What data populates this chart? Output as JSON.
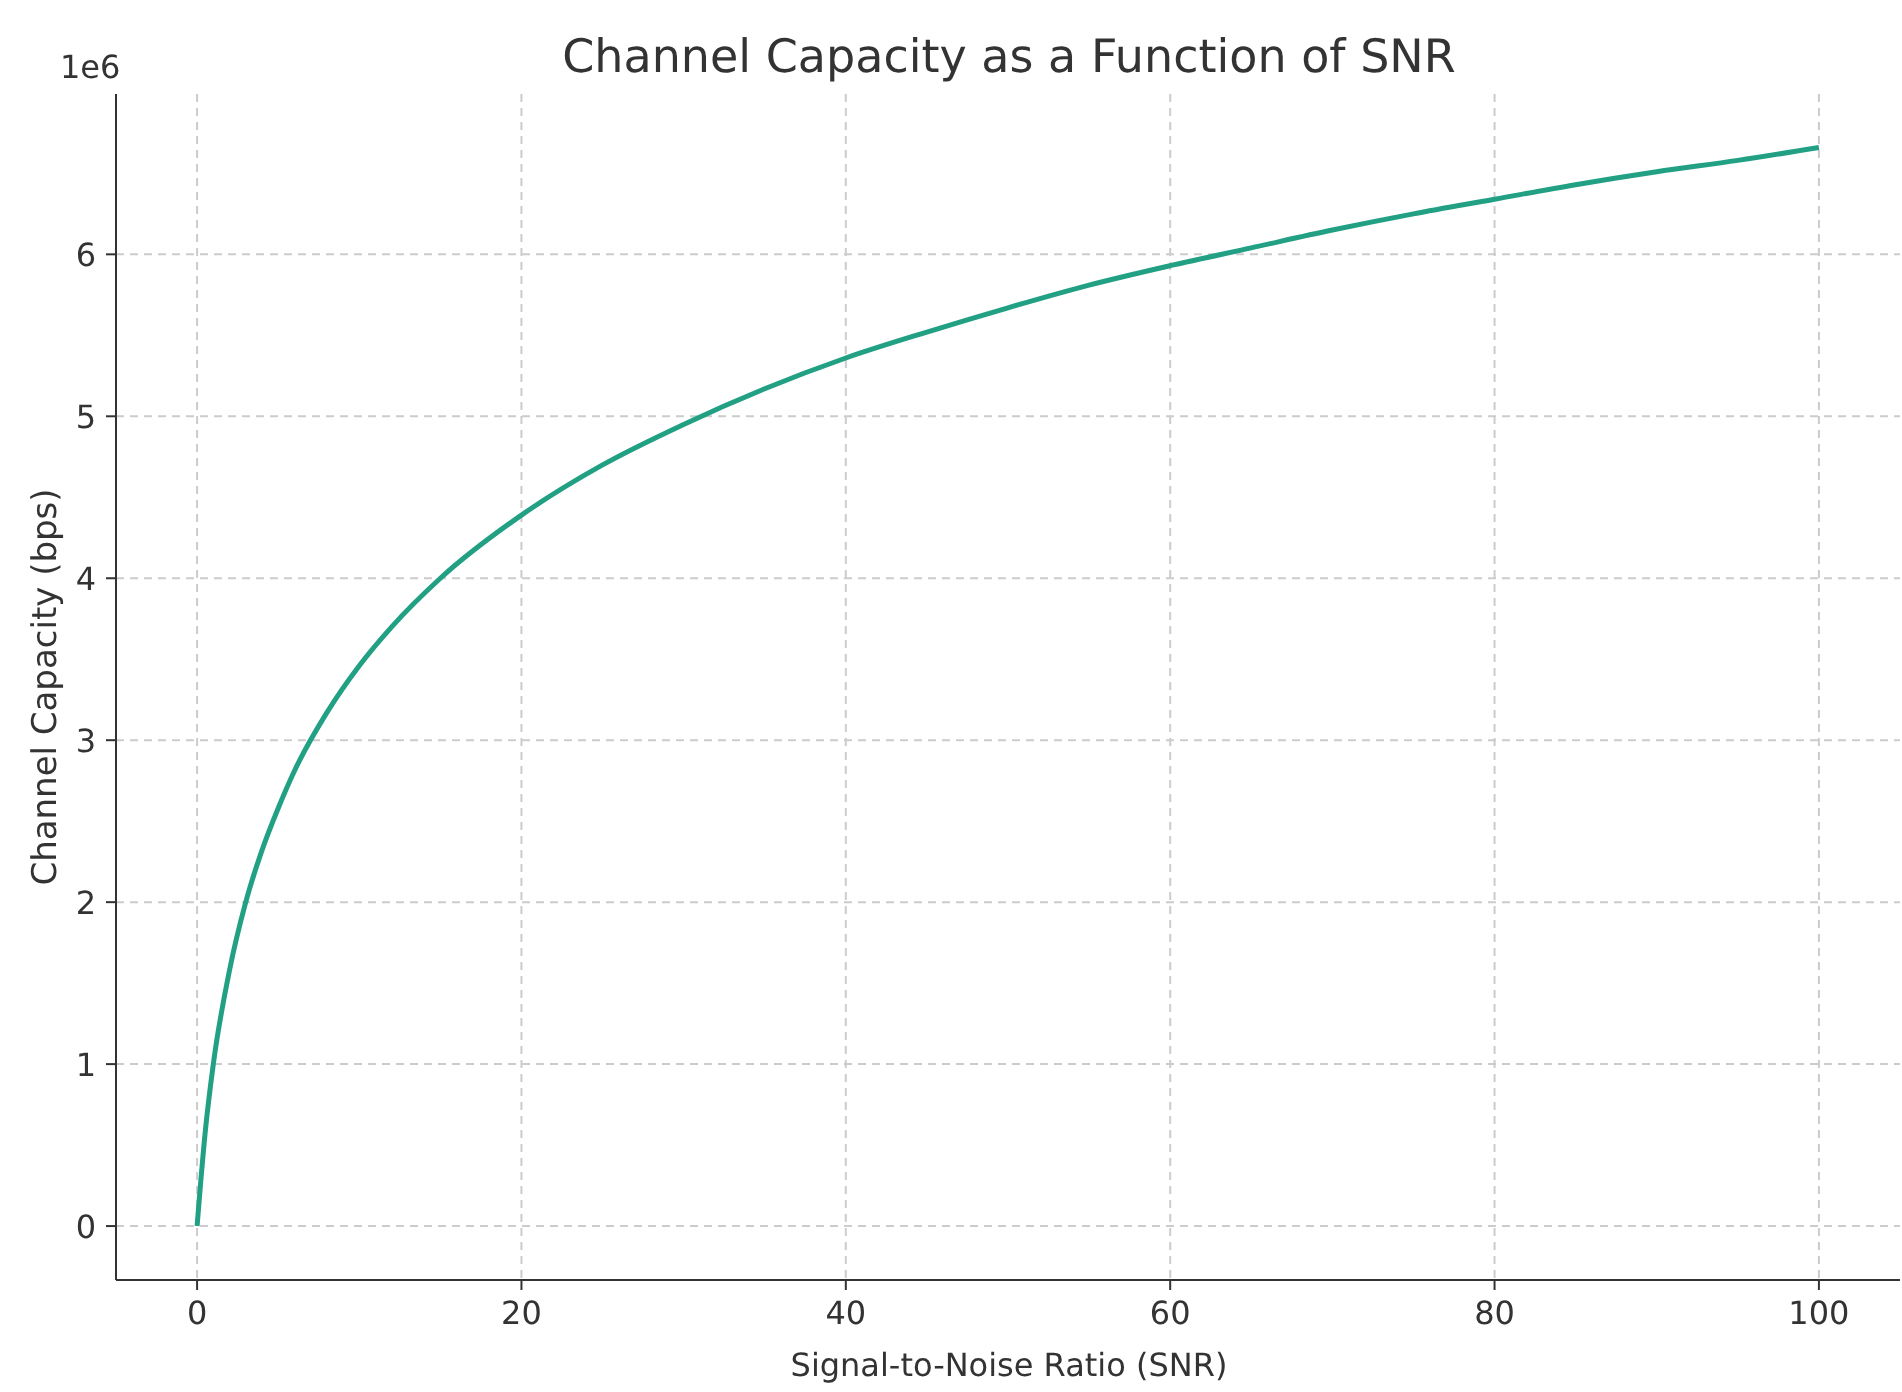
{
  "chart_data": {
    "type": "line",
    "title": "Channel Capacity as a Function of SNR",
    "xlabel": "Signal-to-Noise Ratio (SNR)",
    "ylabel": "Channel Capacity (bps)",
    "annotations": [
      "1e6"
    ],
    "x": [
      0,
      0.5,
      1,
      2,
      3,
      4,
      5,
      6,
      8,
      10,
      12,
      15,
      20,
      25,
      30,
      35,
      40,
      45,
      50,
      55,
      60,
      65,
      70,
      75,
      80,
      85,
      90,
      95,
      100
    ],
    "series": [
      {
        "color": "#21a083",
        "values": [
          0,
          0.58,
          1.0,
          1.58,
          2.0,
          2.32,
          2.58,
          2.81,
          3.17,
          3.46,
          3.7,
          4.0,
          4.39,
          4.7,
          4.95,
          5.17,
          5.36,
          5.52,
          5.67,
          5.81,
          5.93,
          6.04,
          6.15,
          6.25,
          6.34,
          6.43,
          6.51,
          6.58,
          6.66
        ]
      }
    ],
    "xlim": [
      -5,
      105
    ],
    "xticks": [
      0,
      20,
      40,
      60,
      80,
      100
    ],
    "ylim": [
      -0.333,
      6.99
    ],
    "yticks": [
      0,
      1,
      2,
      3,
      4,
      5,
      6
    ],
    "grid": true,
    "marker": "none",
    "line_style": "solid"
  }
}
